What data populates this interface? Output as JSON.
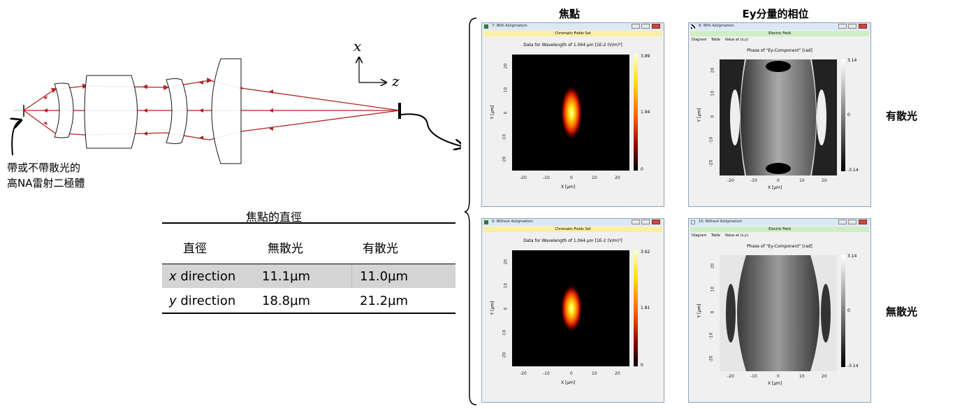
{
  "setup": {
    "axis_x": "x",
    "axis_z": "z",
    "caption_line1": "帶或不帶散光的",
    "caption_line2": "高NA雷射二極體"
  },
  "table": {
    "title": "焦點的直徑",
    "headers": [
      "直徑",
      "無散光",
      "有散光"
    ],
    "rows": [
      {
        "label_italic": "x",
        "label_rest": " direction",
        "no_astig": "11.1µm",
        "with_astig": "11.0µm"
      },
      {
        "label_italic": "y",
        "label_rest": " direction",
        "no_astig": "18.8µm",
        "with_astig": "21.2µm"
      }
    ]
  },
  "headings": {
    "focus": "焦點",
    "phase": "Ey分量的相位",
    "with": "有散光",
    "without": "無散光"
  },
  "windows": {
    "w1": {
      "title": "7: With Astigmatism",
      "subtitle": "Chromatic Fields Set",
      "plot_title": "Data for Wavelength of 1.064 µm  [1E-2 (V/m)²]",
      "cb_max": "3.89",
      "cb_mid": "1.94",
      "cb_min": "0",
      "xlabel": "X [µm]",
      "ylabel": "Y [µm]"
    },
    "w2": {
      "title": "8: With Astigmatism",
      "subtitle": "Electric Field",
      "tabs": [
        "Diagram",
        "Table",
        "Value at (x,y)"
      ],
      "plot_title": "Phase of \"Ey-Component\"  [rad]",
      "cb_max": "3.14",
      "cb_mid": "0",
      "cb_min": "-3.14",
      "xlabel": "X [µm]",
      "ylabel": "Y [µm]"
    },
    "w3": {
      "title": "9: Without Astigmatism",
      "subtitle": "Chromatic Fields Set",
      "plot_title": "Data for Wavelength of 1.064 µm  [1E-2 (V/m)²]",
      "cb_max": "3.62",
      "cb_mid": "1.81",
      "cb_min": "0",
      "xlabel": "X [µm]",
      "ylabel": "Y [µm]"
    },
    "w4": {
      "title": "10: Without Astigmatism",
      "subtitle": "Electric Field",
      "tabs": [
        "Diagram",
        "Table",
        "Value at (x,y)"
      ],
      "plot_title": "Phase of \"Ey-Component\"  [rad]",
      "cb_max": "3.14",
      "cb_mid": "0",
      "cb_min": "-3.14",
      "xlabel": "X [µm]",
      "ylabel": "Y [µm]"
    }
  },
  "ticks": {
    "x": [
      "-20",
      "-10",
      "0",
      "10",
      "20"
    ],
    "y": [
      "20",
      "10",
      "0",
      "-10",
      "-20"
    ]
  }
}
